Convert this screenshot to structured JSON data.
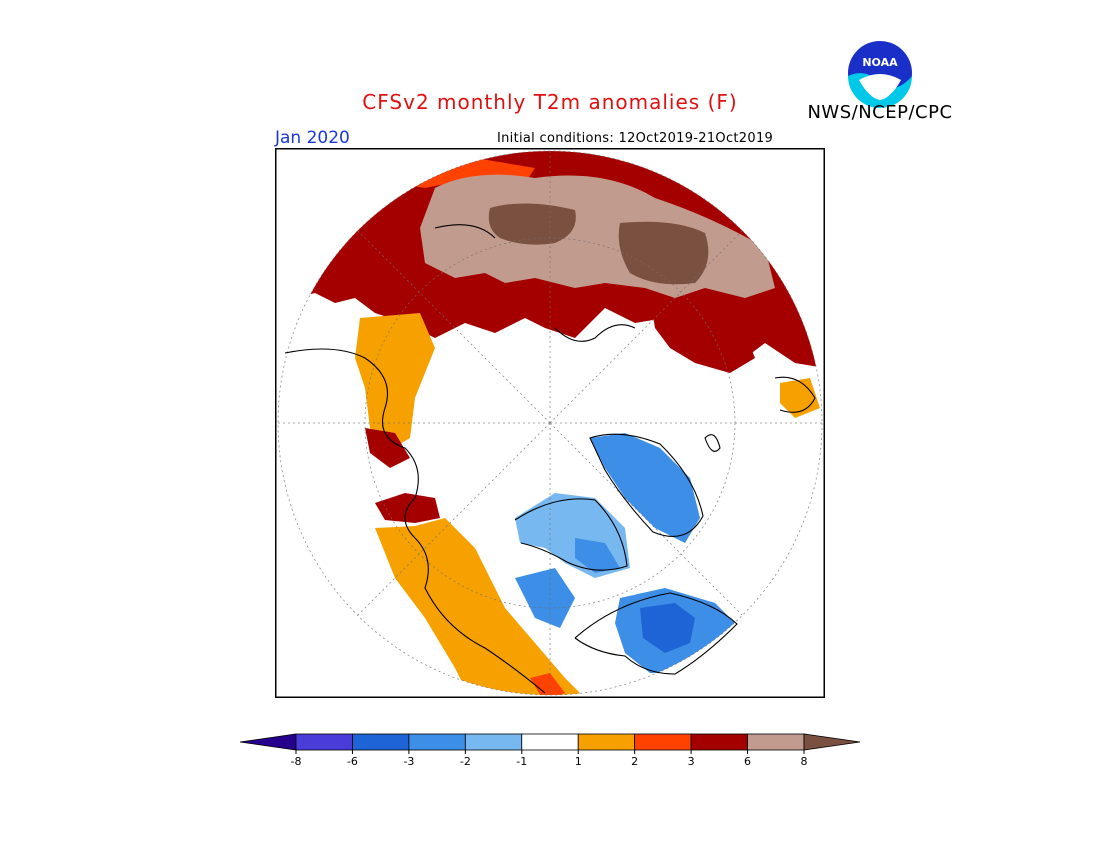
{
  "header": {
    "title": "CFSv2 monthly T2m anomalies (F)",
    "agency": "NWS/NCEP/CPC",
    "logo_text": "NOAA",
    "month": "Jan 2020",
    "init_conditions": "Initial conditions: 12Oct2019-21Oct2019"
  },
  "legend": {
    "colors": [
      "#24008c",
      "#4a3cd8",
      "#1e64d6",
      "#3c8ee6",
      "#78b8f0",
      "#ffffff",
      "#f6a100",
      "#ff4200",
      "#a50000",
      "#c29b8f",
      "#7a5040"
    ],
    "tick_labels": [
      "-8",
      "-6",
      "-3",
      "-2",
      "-1",
      "1",
      "2",
      "3",
      "6",
      "8"
    ]
  }
}
